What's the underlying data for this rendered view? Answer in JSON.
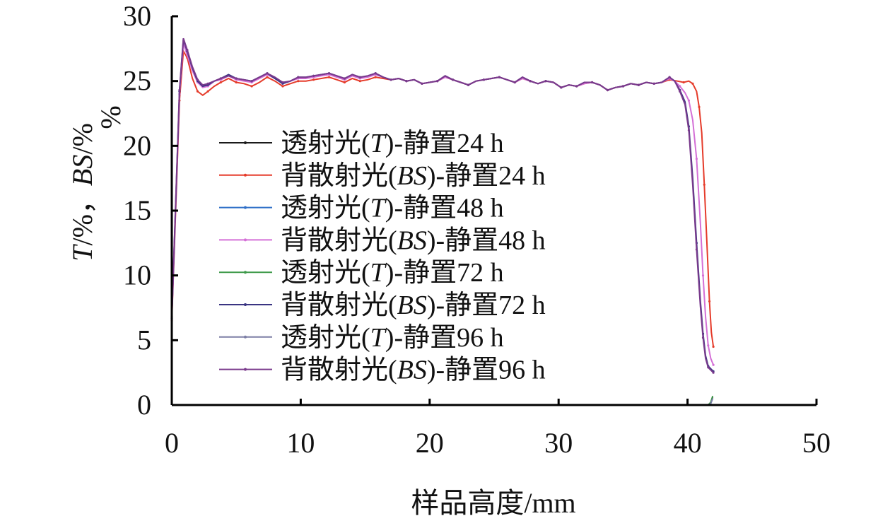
{
  "chart_data": {
    "type": "line",
    "title": "",
    "xlabel": "样品高度/mm",
    "ylabel": "T/%，BS/%",
    "ylabel_extra": "%",
    "xlim": [
      0,
      50
    ],
    "ylim": [
      0,
      30
    ],
    "xticks": [
      "0",
      "10",
      "20",
      "30",
      "40",
      "50"
    ],
    "yticks": [
      "0",
      "5",
      "10",
      "15",
      "20",
      "25",
      "30"
    ],
    "grid": false,
    "legend_position": "center-left",
    "series": [
      {
        "name": "透射光(T)-静置24 h",
        "color": "#1a1a1a",
        "type": "T",
        "x": [
          0,
          41.6,
          41.8,
          41.95
        ],
        "y": [
          0,
          0,
          0.2,
          0.6
        ]
      },
      {
        "name": "背散射光(BS)-静置24 h",
        "color": "#e53b2a",
        "type": "BS",
        "x": [
          0,
          0.3,
          0.6,
          0.9,
          1.2,
          1.6,
          2.0,
          2.4,
          2.8,
          3.3,
          3.8,
          4.4,
          5.0,
          5.6,
          6.2,
          6.8,
          7.4,
          8.0,
          8.6,
          9.2,
          9.8,
          10.4,
          11.0,
          11.6,
          12.2,
          12.8,
          13.4,
          14.0,
          14.6,
          15.2,
          15.8,
          16.4,
          17.0,
          17.6,
          18.2,
          18.8,
          19.4,
          20.0,
          20.6,
          21.2,
          21.8,
          22.4,
          23.0,
          23.6,
          24.2,
          24.8,
          25.4,
          26.0,
          26.6,
          27.2,
          27.8,
          28.4,
          29.0,
          29.6,
          30.2,
          30.8,
          31.4,
          32.0,
          32.6,
          33.2,
          33.8,
          34.4,
          35.0,
          35.6,
          36.2,
          36.8,
          37.4,
          38.0,
          38.6,
          39.2,
          39.7,
          40.1,
          40.4,
          40.7,
          40.9,
          41.1,
          41.3,
          41.5,
          41.7,
          41.85,
          42.0
        ],
        "y": [
          6.5,
          15.0,
          23.5,
          27.3,
          26.8,
          25.2,
          24.2,
          23.9,
          24.2,
          24.6,
          24.9,
          25.2,
          24.9,
          24.8,
          24.6,
          24.9,
          25.3,
          25.0,
          24.6,
          24.8,
          25.0,
          25.0,
          25.1,
          25.2,
          25.3,
          25.1,
          24.9,
          25.2,
          25.0,
          25.1,
          25.3,
          25.2,
          25.1,
          25.2,
          25.0,
          25.1,
          24.8,
          24.9,
          25.0,
          25.3,
          25.1,
          24.9,
          24.7,
          25.0,
          25.1,
          25.2,
          25.3,
          25.1,
          24.9,
          25.2,
          25.0,
          24.8,
          25.0,
          24.9,
          24.5,
          24.7,
          24.6,
          24.8,
          24.9,
          24.7,
          24.3,
          24.5,
          24.6,
          24.8,
          24.7,
          24.9,
          24.8,
          24.9,
          25.1,
          25.0,
          24.9,
          25.0,
          24.8,
          24.2,
          23.0,
          21.0,
          17.0,
          12.5,
          8.0,
          5.6,
          4.5
        ]
      },
      {
        "name": "透射光(T)-静置48 h",
        "color": "#2f6fc8",
        "type": "T",
        "x": [
          0,
          41.6,
          41.8,
          41.95
        ],
        "y": [
          0,
          0,
          0.15,
          0.5
        ]
      },
      {
        "name": "背散射光(BS)-静置48 h",
        "color": "#d46fd6",
        "type": "BS",
        "x": [
          0,
          0.3,
          0.6,
          0.9,
          1.2,
          1.6,
          2.0,
          2.4,
          2.8,
          3.3,
          3.8,
          4.4,
          5.0,
          5.6,
          6.2,
          6.8,
          7.4,
          8.0,
          8.6,
          9.2,
          9.8,
          10.4,
          11.0,
          11.6,
          12.2,
          12.8,
          13.4,
          14.0,
          14.6,
          15.2,
          15.8,
          16.4,
          17.0,
          17.6,
          18.2,
          18.8,
          19.4,
          20.0,
          20.6,
          21.2,
          21.8,
          22.4,
          23.0,
          23.6,
          24.2,
          24.8,
          25.4,
          26.0,
          26.6,
          27.2,
          27.8,
          28.4,
          29.0,
          29.6,
          30.2,
          30.8,
          31.4,
          32.0,
          32.6,
          33.2,
          33.8,
          34.4,
          35.0,
          35.6,
          36.2,
          36.8,
          37.4,
          38.0,
          38.6,
          39.0,
          39.4,
          39.8,
          40.1,
          40.4,
          40.7,
          41.0,
          41.2,
          41.4,
          41.6,
          41.8,
          42.0
        ],
        "y": [
          6.6,
          15.3,
          24.0,
          27.9,
          27.0,
          25.8,
          24.9,
          24.5,
          24.6,
          25.0,
          25.1,
          25.4,
          25.1,
          25.0,
          24.9,
          25.2,
          25.5,
          25.2,
          24.8,
          25.0,
          25.2,
          25.2,
          25.3,
          25.4,
          25.5,
          25.3,
          25.1,
          25.4,
          25.2,
          25.3,
          25.5,
          25.3,
          25.1,
          25.2,
          25.0,
          25.1,
          24.8,
          24.9,
          25.0,
          25.3,
          25.1,
          24.9,
          24.7,
          25.0,
          25.1,
          25.2,
          25.3,
          25.1,
          24.9,
          25.2,
          25.0,
          24.8,
          25.0,
          24.9,
          24.5,
          24.7,
          24.6,
          24.8,
          24.9,
          24.7,
          24.3,
          24.5,
          24.6,
          24.8,
          24.7,
          24.9,
          24.8,
          24.9,
          25.2,
          25.0,
          24.6,
          24.1,
          23.5,
          22.0,
          19.0,
          14.0,
          10.0,
          6.8,
          4.6,
          3.6,
          3.1
        ]
      },
      {
        "name": "透射光(T)-静置72 h",
        "color": "#3e9a4a",
        "type": "T",
        "x": [
          0,
          41.6,
          41.8,
          41.95
        ],
        "y": [
          0,
          0,
          0.2,
          0.7
        ]
      },
      {
        "name": "背散射光(BS)-静置72 h",
        "color": "#3a3482",
        "type": "BS",
        "x": [
          0,
          0.3,
          0.6,
          0.9,
          1.2,
          1.6,
          2.0,
          2.4,
          2.8,
          3.3,
          3.8,
          4.4,
          5.0,
          5.6,
          6.2,
          6.8,
          7.4,
          8.0,
          8.6,
          9.2,
          9.8,
          10.4,
          11.0,
          11.6,
          12.2,
          12.8,
          13.4,
          14.0,
          14.6,
          15.2,
          15.8,
          16.4,
          17.0,
          17.6,
          18.2,
          18.8,
          19.4,
          20.0,
          20.6,
          21.2,
          21.8,
          22.4,
          23.0,
          23.6,
          24.2,
          24.8,
          25.4,
          26.0,
          26.6,
          27.2,
          27.8,
          28.4,
          29.0,
          29.6,
          30.2,
          30.8,
          31.4,
          32.0,
          32.6,
          33.2,
          33.8,
          34.4,
          35.0,
          35.6,
          36.2,
          36.8,
          37.4,
          38.0,
          38.6,
          39.0,
          39.4,
          39.8,
          40.1,
          40.4,
          40.7,
          41.0,
          41.2,
          41.4,
          41.6,
          41.8,
          42.0
        ],
        "y": [
          6.7,
          15.5,
          24.2,
          28.2,
          27.3,
          26.0,
          25.0,
          24.6,
          24.7,
          25.0,
          25.2,
          25.5,
          25.2,
          25.1,
          25.0,
          25.3,
          25.6,
          25.2,
          24.8,
          25.0,
          25.3,
          25.3,
          25.4,
          25.5,
          25.6,
          25.4,
          25.2,
          25.5,
          25.3,
          25.4,
          25.6,
          25.3,
          25.1,
          25.2,
          25.0,
          25.1,
          24.8,
          24.9,
          25.0,
          25.4,
          25.1,
          24.9,
          24.7,
          25.0,
          25.1,
          25.2,
          25.3,
          25.1,
          24.9,
          25.3,
          25.0,
          24.8,
          25.0,
          24.9,
          24.5,
          24.7,
          24.6,
          24.9,
          24.9,
          24.7,
          24.3,
          24.5,
          24.6,
          24.8,
          24.7,
          24.9,
          24.8,
          24.9,
          25.3,
          25.0,
          24.3,
          23.4,
          21.5,
          17.5,
          12.5,
          8.0,
          5.5,
          3.8,
          3.0,
          2.8,
          2.6
        ]
      },
      {
        "name": "透射光(T)-静置96 h",
        "color": "#7d7fa6",
        "type": "T",
        "x": [
          0,
          41.6,
          41.8,
          41.95
        ],
        "y": [
          0,
          0,
          0.1,
          0.5
        ]
      },
      {
        "name": "背散射光(BS)-静置96 h",
        "color": "#7a3a8c",
        "type": "BS",
        "x": [
          0,
          0.3,
          0.6,
          0.9,
          1.2,
          1.6,
          2.0,
          2.4,
          2.8,
          3.3,
          3.8,
          4.4,
          5.0,
          5.6,
          6.2,
          6.8,
          7.4,
          8.0,
          8.6,
          9.2,
          9.8,
          10.4,
          11.0,
          11.6,
          12.2,
          12.8,
          13.4,
          14.0,
          14.6,
          15.2,
          15.8,
          16.4,
          17.0,
          17.6,
          18.2,
          18.8,
          19.4,
          20.0,
          20.6,
          21.2,
          21.8,
          22.4,
          23.0,
          23.6,
          24.2,
          24.8,
          25.4,
          26.0,
          26.6,
          27.2,
          27.8,
          28.4,
          29.0,
          29.6,
          30.2,
          30.8,
          31.4,
          32.0,
          32.6,
          33.2,
          33.8,
          34.4,
          35.0,
          35.6,
          36.2,
          36.8,
          37.4,
          38.0,
          38.6,
          39.0,
          39.4,
          39.8,
          40.1,
          40.4,
          40.7,
          41.0,
          41.2,
          41.4,
          41.6,
          41.8,
          42.0
        ],
        "y": [
          6.8,
          15.6,
          24.3,
          28.3,
          27.4,
          26.1,
          25.1,
          24.7,
          24.8,
          25.0,
          25.2,
          25.4,
          25.2,
          25.1,
          25.0,
          25.3,
          25.6,
          25.3,
          24.9,
          25.0,
          25.3,
          25.3,
          25.4,
          25.5,
          25.6,
          25.4,
          25.2,
          25.5,
          25.3,
          25.4,
          25.6,
          25.3,
          25.1,
          25.2,
          25.0,
          25.1,
          24.8,
          24.9,
          25.0,
          25.4,
          25.1,
          24.9,
          24.7,
          25.0,
          25.1,
          25.2,
          25.3,
          25.1,
          24.9,
          25.3,
          25.0,
          24.8,
          25.0,
          24.9,
          24.5,
          24.7,
          24.6,
          24.9,
          24.9,
          24.7,
          24.3,
          24.5,
          24.6,
          24.8,
          24.7,
          24.9,
          24.8,
          24.9,
          25.3,
          25.0,
          24.2,
          23.2,
          21.2,
          17.0,
          12.0,
          7.6,
          5.2,
          3.6,
          2.9,
          2.7,
          2.5
        ]
      }
    ]
  }
}
